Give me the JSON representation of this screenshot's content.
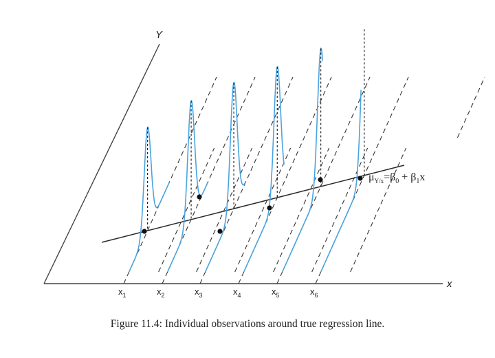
{
  "figure": {
    "y_axis_label": "Y",
    "x_axis_label": "x",
    "x_ticks": [
      {
        "base": "x",
        "sub": "1"
      },
      {
        "base": "x",
        "sub": "2"
      },
      {
        "base": "x",
        "sub": "3"
      },
      {
        "base": "x",
        "sub": "4"
      },
      {
        "base": "x",
        "sub": "5"
      },
      {
        "base": "x",
        "sub": "6"
      }
    ],
    "equation": {
      "mu": "μ",
      "mu_sub": "Y/x",
      "rhs_1": "=β",
      "rhs_1_sub": "0",
      "rhs_2": " + β",
      "rhs_2_sub": "1",
      "rhs_3": "x"
    },
    "caption": "Figure 11.4: Individual observations around true regression line."
  }
}
